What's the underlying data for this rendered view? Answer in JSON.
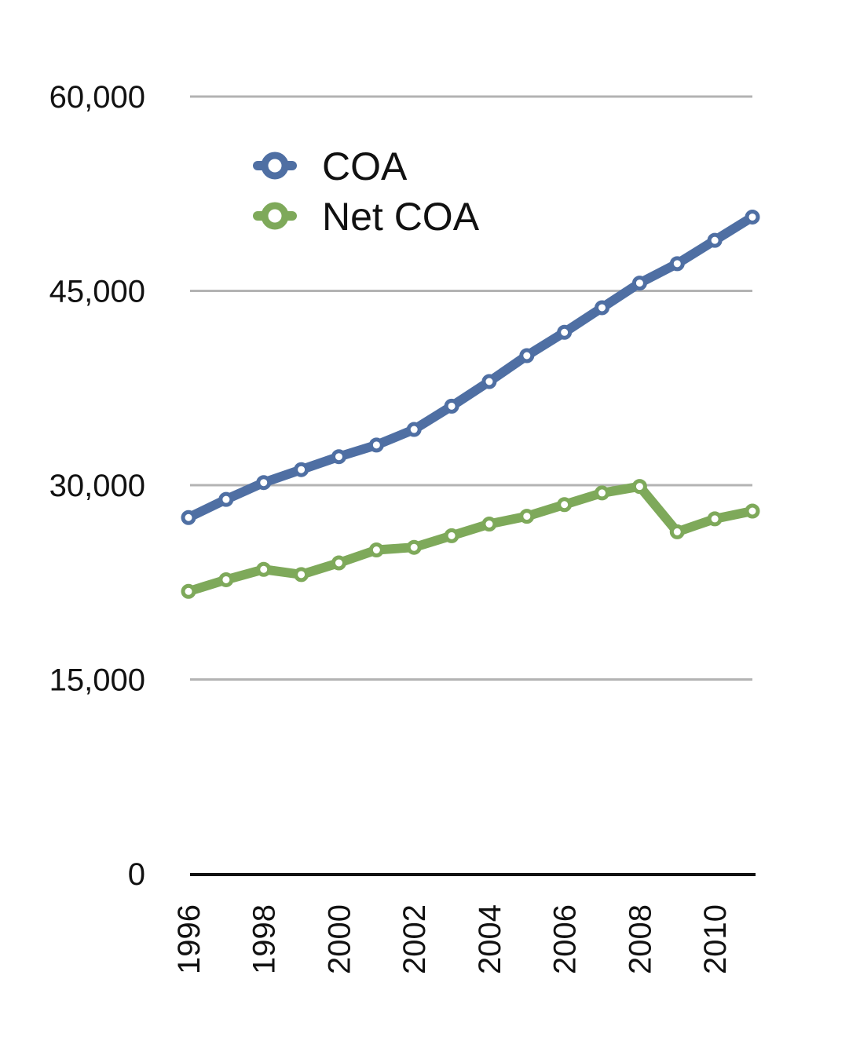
{
  "chart_data": {
    "type": "line",
    "title": "",
    "xlabel": "",
    "ylabel": "",
    "x": [
      1996,
      1997,
      1998,
      1999,
      2000,
      2001,
      2002,
      2003,
      2004,
      2005,
      2006,
      2007,
      2008,
      2009,
      2010,
      2011
    ],
    "x_tick_labels": [
      "1996",
      "1998",
      "2000",
      "2002",
      "2004",
      "2006",
      "2008",
      "2010"
    ],
    "x_tick_values": [
      1996,
      1998,
      2000,
      2002,
      2004,
      2006,
      2008,
      2010
    ],
    "ylim": [
      0,
      60000
    ],
    "y_ticks": [
      0,
      15000,
      30000,
      45000,
      60000
    ],
    "y_tick_labels": [
      "0",
      "15,000",
      "30,000",
      "45,000",
      "60,000"
    ],
    "grid": true,
    "legend_position": "top-left",
    "series": [
      {
        "name": "COA",
        "color": "#4f6fa3",
        "marker": "hollow-circle",
        "values": [
          27500,
          28900,
          30200,
          31200,
          32200,
          33100,
          34300,
          36100,
          38000,
          40000,
          41800,
          43700,
          45600,
          47100,
          48900,
          50700
        ]
      },
      {
        "name": "Net COA",
        "color": "#7ea95a",
        "marker": "hollow-circle",
        "values": [
          21800,
          22700,
          23500,
          23100,
          24000,
          25000,
          25200,
          26100,
          27000,
          27600,
          28500,
          29400,
          29900,
          26400,
          27400,
          28000
        ]
      }
    ]
  }
}
